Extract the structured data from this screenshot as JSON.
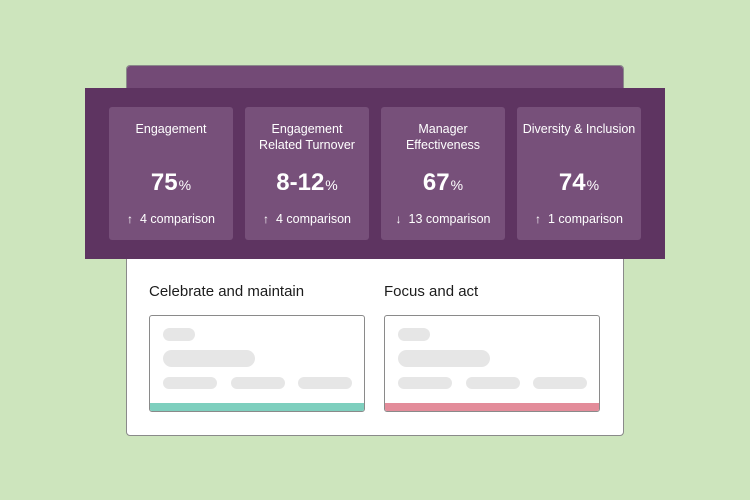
{
  "metrics": [
    {
      "label": "Engagement",
      "value": "75",
      "unit": "%",
      "direction": "up",
      "arrow": "↑",
      "comparison": "4 comparison"
    },
    {
      "label": "Engagement Related Turnover",
      "value": "8-12",
      "unit": "%",
      "direction": "up",
      "arrow": "↑",
      "comparison": "4 comparison"
    },
    {
      "label": "Manager Effectiveness",
      "value": "67",
      "unit": "%",
      "direction": "down",
      "arrow": "↓",
      "comparison": "13 comparison"
    },
    {
      "label": "Diversity & Inclusion",
      "value": "74",
      "unit": "%",
      "direction": "up",
      "arrow": "↑",
      "comparison": "1 comparison"
    }
  ],
  "sections": {
    "celebrate": {
      "title": "Celebrate and maintain",
      "accent_color": "#7ecfbe"
    },
    "focus": {
      "title": "Focus and act",
      "accent_color": "#e38c9a"
    }
  },
  "colors": {
    "background": "#cde5bd",
    "band": "#5e3461",
    "metric_card": "#77507a",
    "back_card_top": "#734a76"
  }
}
